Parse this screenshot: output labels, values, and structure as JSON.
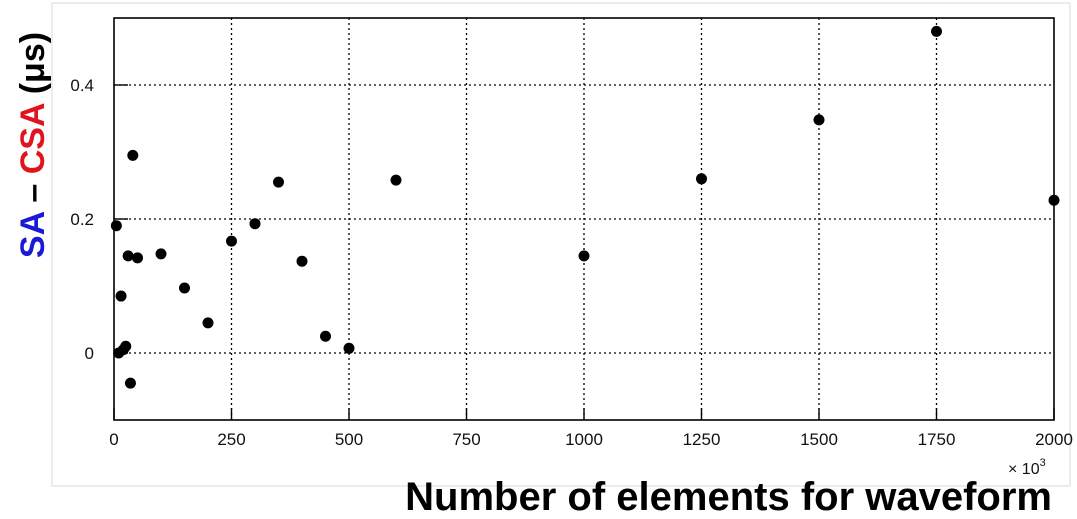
{
  "chart_data": {
    "type": "scatter",
    "title": "",
    "xlabel": "Number of elements for waveform",
    "ylabel_parts": [
      {
        "text": "SA",
        "color": "#1a1ad6"
      },
      {
        "text": " – ",
        "color": "#000000"
      },
      {
        "text": "CSA",
        "color": "#e0141e"
      },
      {
        "text": " (μs)",
        "color": "#000000"
      }
    ],
    "x_multiplier": "× 10",
    "x_multiplier_exp": "3",
    "xlim": [
      0,
      2000
    ],
    "ylim": [
      -0.1,
      0.5
    ],
    "xticks": [
      0,
      250,
      500,
      750,
      1000,
      1250,
      1500,
      1750,
      2000
    ],
    "yticks": [
      0,
      0.2,
      0.4
    ],
    "ytick_labels": [
      "0",
      "0.2",
      "0.4"
    ],
    "grid": true,
    "marker_color": "#000000",
    "points": [
      {
        "x": 5,
        "y": 0.19
      },
      {
        "x": 10,
        "y": 0.0
      },
      {
        "x": 15,
        "y": 0.085
      },
      {
        "x": 20,
        "y": 0.005
      },
      {
        "x": 25,
        "y": 0.01
      },
      {
        "x": 30,
        "y": 0.145
      },
      {
        "x": 35,
        "y": -0.045
      },
      {
        "x": 40,
        "y": 0.295
      },
      {
        "x": 50,
        "y": 0.142
      },
      {
        "x": 100,
        "y": 0.148
      },
      {
        "x": 150,
        "y": 0.097
      },
      {
        "x": 200,
        "y": 0.045
      },
      {
        "x": 250,
        "y": 0.167
      },
      {
        "x": 300,
        "y": 0.193
      },
      {
        "x": 350,
        "y": 0.255
      },
      {
        "x": 400,
        "y": 0.137
      },
      {
        "x": 450,
        "y": 0.025
      },
      {
        "x": 500,
        "y": 0.007
      },
      {
        "x": 600,
        "y": 0.258
      },
      {
        "x": 1000,
        "y": 0.145
      },
      {
        "x": 1250,
        "y": 0.26
      },
      {
        "x": 1500,
        "y": 0.348
      },
      {
        "x": 1750,
        "y": 0.48
      },
      {
        "x": 2000,
        "y": 0.228
      }
    ]
  }
}
